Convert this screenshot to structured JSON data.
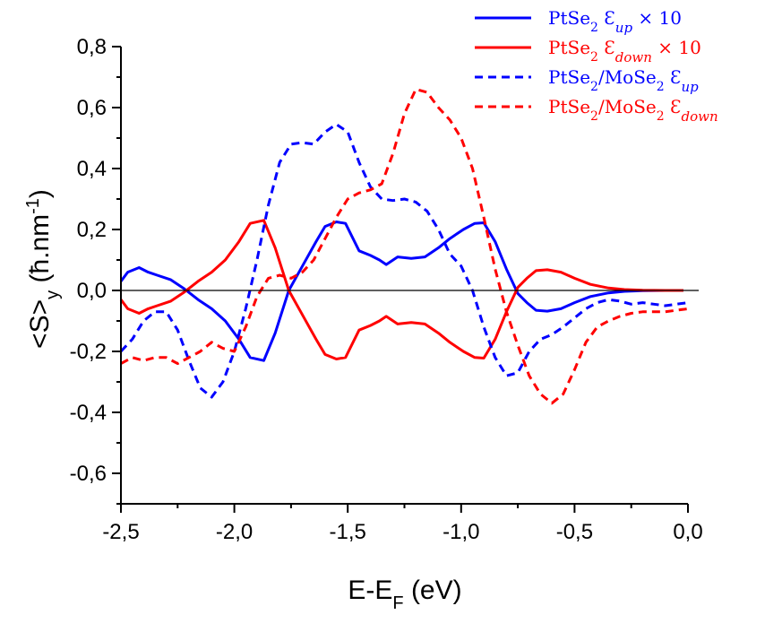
{
  "chart_data": {
    "type": "line",
    "xlabel": {
      "main": "E-E",
      "sub": "F",
      "unit": " (eV)"
    },
    "ylabel": {
      "main": "<S>",
      "sub": "y",
      "unit": " (ħ.nm",
      "sup": "-1",
      "close": ")"
    },
    "xlim": [
      -2.5,
      0.0
    ],
    "ylim": [
      -0.7,
      0.8
    ],
    "x_ticks": [
      -2.5,
      -2.0,
      -1.5,
      -1.0,
      -0.5,
      0.0
    ],
    "x_tick_labels": [
      "-2,5",
      "-2,0",
      "-1,5",
      "-1,0",
      "-0,5",
      "0,0"
    ],
    "y_ticks": [
      -0.6,
      -0.4,
      -0.2,
      0.0,
      0.2,
      0.4,
      0.6,
      0.8
    ],
    "y_tick_labels": [
      "-0,6",
      "-0,4",
      "-0,2",
      "0,0",
      "0,2",
      "0,4",
      "0,6",
      "0,8"
    ],
    "zero_line": true,
    "grid": false,
    "legend_position": "top-right",
    "series": [
      {
        "name": "PtSe₂ Ɛup × 10",
        "legend": {
          "base": "PtSe",
          "sub": "2",
          "sym": " Ɛ",
          "label": "up",
          "suffix": "  × 10"
        },
        "color": "#0000ff",
        "dash": "solid",
        "points": [
          [
            -2.5,
            0.03
          ],
          [
            -2.47,
            0.06
          ],
          [
            -2.42,
            0.075
          ],
          [
            -2.38,
            0.06
          ],
          [
            -2.34,
            0.05
          ],
          [
            -2.28,
            0.035
          ],
          [
            -2.22,
            0.005
          ],
          [
            -2.16,
            -0.03
          ],
          [
            -2.1,
            -0.06
          ],
          [
            -2.04,
            -0.1
          ],
          [
            -1.98,
            -0.16
          ],
          [
            -1.93,
            -0.22
          ],
          [
            -1.87,
            -0.23
          ],
          [
            -1.82,
            -0.14
          ],
          [
            -1.76,
            0.0
          ],
          [
            -1.7,
            0.08
          ],
          [
            -1.64,
            0.16
          ],
          [
            -1.6,
            0.21
          ],
          [
            -1.55,
            0.225
          ],
          [
            -1.51,
            0.22
          ],
          [
            -1.45,
            0.13
          ],
          [
            -1.4,
            0.115
          ],
          [
            -1.36,
            0.1
          ],
          [
            -1.33,
            0.085
          ],
          [
            -1.28,
            0.11
          ],
          [
            -1.22,
            0.105
          ],
          [
            -1.16,
            0.11
          ],
          [
            -1.1,
            0.14
          ],
          [
            -1.05,
            0.17
          ],
          [
            -0.99,
            0.2
          ],
          [
            -0.94,
            0.22
          ],
          [
            -0.9,
            0.222
          ],
          [
            -0.85,
            0.16
          ],
          [
            -0.8,
            0.07
          ],
          [
            -0.75,
            -0.01
          ],
          [
            -0.71,
            -0.04
          ],
          [
            -0.67,
            -0.065
          ],
          [
            -0.62,
            -0.068
          ],
          [
            -0.56,
            -0.06
          ],
          [
            -0.5,
            -0.04
          ],
          [
            -0.43,
            -0.02
          ],
          [
            -0.35,
            -0.008
          ],
          [
            -0.28,
            -0.003
          ],
          [
            -0.2,
            -0.001
          ],
          [
            -0.1,
            0.0
          ],
          [
            -0.02,
            0.0
          ]
        ]
      },
      {
        "name": "PtSe₂ Ɛdown × 10",
        "legend": {
          "base": "PtSe",
          "sub": "2",
          "sym": " Ɛ",
          "label": "down",
          "suffix": "  × 10"
        },
        "color": "#ff0000",
        "dash": "solid",
        "points": [
          [
            -2.5,
            -0.03
          ],
          [
            -2.47,
            -0.06
          ],
          [
            -2.42,
            -0.075
          ],
          [
            -2.38,
            -0.06
          ],
          [
            -2.34,
            -0.05
          ],
          [
            -2.28,
            -0.035
          ],
          [
            -2.22,
            -0.005
          ],
          [
            -2.16,
            0.03
          ],
          [
            -2.1,
            0.06
          ],
          [
            -2.04,
            0.1
          ],
          [
            -1.98,
            0.16
          ],
          [
            -1.93,
            0.22
          ],
          [
            -1.87,
            0.23
          ],
          [
            -1.82,
            0.14
          ],
          [
            -1.76,
            0.0
          ],
          [
            -1.7,
            -0.08
          ],
          [
            -1.64,
            -0.16
          ],
          [
            -1.6,
            -0.21
          ],
          [
            -1.55,
            -0.225
          ],
          [
            -1.51,
            -0.22
          ],
          [
            -1.45,
            -0.13
          ],
          [
            -1.4,
            -0.115
          ],
          [
            -1.36,
            -0.1
          ],
          [
            -1.33,
            -0.085
          ],
          [
            -1.28,
            -0.11
          ],
          [
            -1.22,
            -0.105
          ],
          [
            -1.16,
            -0.11
          ],
          [
            -1.1,
            -0.14
          ],
          [
            -1.05,
            -0.17
          ],
          [
            -0.99,
            -0.2
          ],
          [
            -0.94,
            -0.22
          ],
          [
            -0.9,
            -0.222
          ],
          [
            -0.85,
            -0.16
          ],
          [
            -0.8,
            -0.07
          ],
          [
            -0.75,
            0.01
          ],
          [
            -0.71,
            0.04
          ],
          [
            -0.67,
            0.065
          ],
          [
            -0.62,
            0.068
          ],
          [
            -0.56,
            0.06
          ],
          [
            -0.5,
            0.04
          ],
          [
            -0.43,
            0.02
          ],
          [
            -0.35,
            0.008
          ],
          [
            -0.28,
            0.003
          ],
          [
            -0.2,
            0.001
          ],
          [
            -0.1,
            0.0
          ],
          [
            -0.02,
            0.0
          ]
        ]
      },
      {
        "name": "PtSe₂/MoSe₂ Ɛup",
        "legend": {
          "base": "PtSe",
          "sub": "2",
          "mid": "/MoSe",
          "sub2": "2",
          "sym": " Ɛ",
          "label": "up"
        },
        "color": "#0000ff",
        "dash": "dashed",
        "points": [
          [
            -2.5,
            -0.2
          ],
          [
            -2.45,
            -0.16
          ],
          [
            -2.4,
            -0.1
          ],
          [
            -2.35,
            -0.07
          ],
          [
            -2.3,
            -0.07
          ],
          [
            -2.25,
            -0.13
          ],
          [
            -2.2,
            -0.23
          ],
          [
            -2.15,
            -0.32
          ],
          [
            -2.1,
            -0.35
          ],
          [
            -2.05,
            -0.3
          ],
          [
            -2.0,
            -0.2
          ],
          [
            -1.95,
            -0.06
          ],
          [
            -1.9,
            0.1
          ],
          [
            -1.85,
            0.28
          ],
          [
            -1.8,
            0.42
          ],
          [
            -1.75,
            0.48
          ],
          [
            -1.7,
            0.485
          ],
          [
            -1.65,
            0.48
          ],
          [
            -1.6,
            0.52
          ],
          [
            -1.55,
            0.545
          ],
          [
            -1.5,
            0.52
          ],
          [
            -1.45,
            0.42
          ],
          [
            -1.4,
            0.34
          ],
          [
            -1.35,
            0.3
          ],
          [
            -1.3,
            0.295
          ],
          [
            -1.25,
            0.3
          ],
          [
            -1.2,
            0.29
          ],
          [
            -1.15,
            0.26
          ],
          [
            -1.1,
            0.2
          ],
          [
            -1.05,
            0.12
          ],
          [
            -1.0,
            0.08
          ],
          [
            -0.95,
            0.0
          ],
          [
            -0.9,
            -0.12
          ],
          [
            -0.85,
            -0.22
          ],
          [
            -0.8,
            -0.28
          ],
          [
            -0.75,
            -0.27
          ],
          [
            -0.7,
            -0.2
          ],
          [
            -0.65,
            -0.16
          ],
          [
            -0.6,
            -0.145
          ],
          [
            -0.55,
            -0.12
          ],
          [
            -0.5,
            -0.09
          ],
          [
            -0.45,
            -0.06
          ],
          [
            -0.4,
            -0.04
          ],
          [
            -0.35,
            -0.03
          ],
          [
            -0.3,
            -0.035
          ],
          [
            -0.25,
            -0.045
          ],
          [
            -0.2,
            -0.04
          ],
          [
            -0.15,
            -0.045
          ],
          [
            -0.1,
            -0.05
          ],
          [
            -0.05,
            -0.045
          ],
          [
            0.0,
            -0.04
          ]
        ]
      },
      {
        "name": "PtSe₂/MoSe₂ Ɛdown",
        "legend": {
          "base": "PtSe",
          "sub": "2",
          "mid": "/MoSe",
          "sub2": "2",
          "sym": " Ɛ",
          "label": "down"
        },
        "color": "#ff0000",
        "dash": "dashed",
        "points": [
          [
            -2.5,
            -0.24
          ],
          [
            -2.45,
            -0.22
          ],
          [
            -2.4,
            -0.23
          ],
          [
            -2.35,
            -0.22
          ],
          [
            -2.3,
            -0.22
          ],
          [
            -2.25,
            -0.24
          ],
          [
            -2.2,
            -0.22
          ],
          [
            -2.15,
            -0.2
          ],
          [
            -2.1,
            -0.17
          ],
          [
            -2.05,
            -0.19
          ],
          [
            -2.0,
            -0.2
          ],
          [
            -1.95,
            -0.12
          ],
          [
            -1.9,
            -0.02
          ],
          [
            -1.85,
            0.04
          ],
          [
            -1.8,
            0.05
          ],
          [
            -1.75,
            0.04
          ],
          [
            -1.7,
            0.06
          ],
          [
            -1.65,
            0.1
          ],
          [
            -1.6,
            0.17
          ],
          [
            -1.55,
            0.24
          ],
          [
            -1.5,
            0.3
          ],
          [
            -1.45,
            0.32
          ],
          [
            -1.4,
            0.33
          ],
          [
            -1.35,
            0.35
          ],
          [
            -1.3,
            0.45
          ],
          [
            -1.25,
            0.58
          ],
          [
            -1.2,
            0.66
          ],
          [
            -1.15,
            0.65
          ],
          [
            -1.1,
            0.6
          ],
          [
            -1.05,
            0.56
          ],
          [
            -1.0,
            0.5
          ],
          [
            -0.95,
            0.4
          ],
          [
            -0.9,
            0.24
          ],
          [
            -0.85,
            0.07
          ],
          [
            -0.8,
            -0.07
          ],
          [
            -0.75,
            -0.18
          ],
          [
            -0.7,
            -0.28
          ],
          [
            -0.65,
            -0.34
          ],
          [
            -0.6,
            -0.37
          ],
          [
            -0.55,
            -0.34
          ],
          [
            -0.5,
            -0.26
          ],
          [
            -0.45,
            -0.17
          ],
          [
            -0.4,
            -0.12
          ],
          [
            -0.35,
            -0.1
          ],
          [
            -0.3,
            -0.085
          ],
          [
            -0.25,
            -0.075
          ],
          [
            -0.2,
            -0.07
          ],
          [
            -0.15,
            -0.07
          ],
          [
            -0.1,
            -0.07
          ],
          [
            -0.05,
            -0.065
          ],
          [
            0.0,
            -0.06
          ]
        ]
      }
    ]
  }
}
